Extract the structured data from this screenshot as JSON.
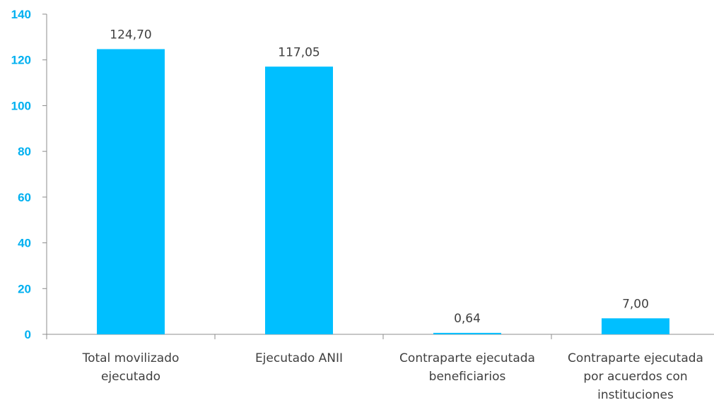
{
  "chart_data": {
    "type": "bar",
    "categories": [
      [
        "Total movilizado",
        "ejecutado"
      ],
      [
        "Ejecutado ANII"
      ],
      [
        "Contraparte ejecutada",
        "beneficiarios"
      ],
      [
        "Contraparte ejecutada",
        "por acuerdos con",
        "instituciones"
      ]
    ],
    "values": [
      124.7,
      117.05,
      0.64,
      7.0
    ],
    "data_labels": [
      "124,70",
      "117,05",
      "0,64",
      "7,00"
    ],
    "ylim": [
      0,
      140
    ],
    "yticks": [
      0,
      20,
      40,
      60,
      80,
      100,
      120,
      140
    ],
    "grid": false,
    "legend": "none",
    "colors": {
      "bar": "#00BFFF",
      "ytick_label": "#00B0F0",
      "axis": "#8C8C8C",
      "text": "#404040"
    }
  }
}
